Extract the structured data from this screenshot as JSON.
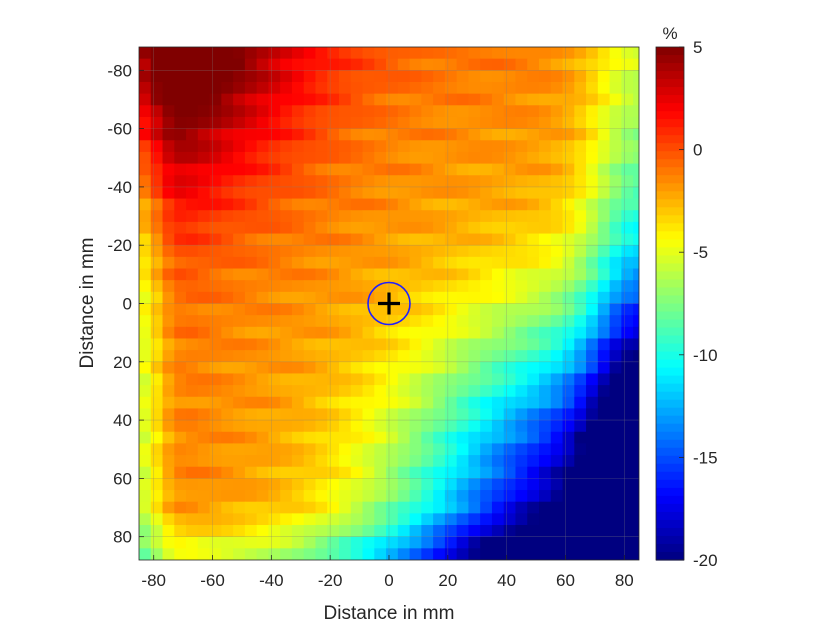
{
  "chart_data": {
    "type": "heatmap",
    "title": "",
    "xlabel": "Distance in mm",
    "ylabel": "Distance in mm",
    "xlim": [
      -85,
      85
    ],
    "ylim": [
      -88,
      88
    ],
    "y_direction": "reversed",
    "x_ticks": [
      -80,
      -60,
      -40,
      -20,
      0,
      20,
      40,
      60,
      80
    ],
    "y_ticks": [
      -80,
      -60,
      -40,
      -20,
      0,
      20,
      40,
      60,
      80
    ],
    "grid": true,
    "colormap": "jet",
    "colorbar": {
      "label": "%",
      "range": [
        -20,
        5
      ],
      "ticks": [
        5,
        0,
        -5,
        -10,
        -15,
        -20
      ]
    },
    "cell_size_mm": 4,
    "center_marker": {
      "x": 0,
      "y": 0,
      "symbol": "+",
      "circle": true,
      "circle_color": "#1f1fff"
    },
    "field_description": "Mostly about -1 to -2 % across the centre; up to +5 % in the upper-left corner; falling to about -15 to -20 % at the lower-right corner and along the right edge."
  },
  "colors": {
    "grid": "#7f7f7f",
    "axis": "#262626",
    "marker": "#000000"
  }
}
